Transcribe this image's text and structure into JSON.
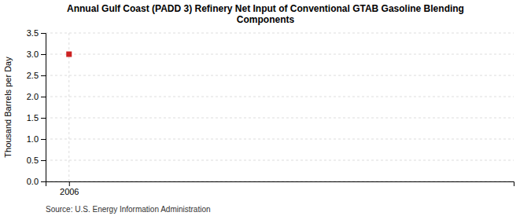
{
  "chart_data": {
    "type": "scatter",
    "title": "Annual Gulf Coast (PADD 3) Refinery Net Input of Conventional GTAB Gasoline Blending\nComponents",
    "y_label": "Thousand Barrels per Day",
    "source": "Source: U.S. Energy Information Administration",
    "x": [
      2006
    ],
    "values": [
      3.0
    ],
    "color": "#cc2222",
    "marker": "square",
    "xlim": [
      2005.5,
      2015.5
    ],
    "ylim": [
      0.0,
      3.5
    ],
    "xticks": [
      2006
    ],
    "yticks": [
      {
        "value": 0.0,
        "label": "0.0"
      },
      0.5,
      {
        "value": 1.0,
        "label": "1.0"
      },
      1.5,
      {
        "value": 2.0,
        "label": "2.0"
      },
      2.5,
      {
        "value": 3.0,
        "label": "3.0"
      },
      3.5
    ],
    "grid": true
  }
}
